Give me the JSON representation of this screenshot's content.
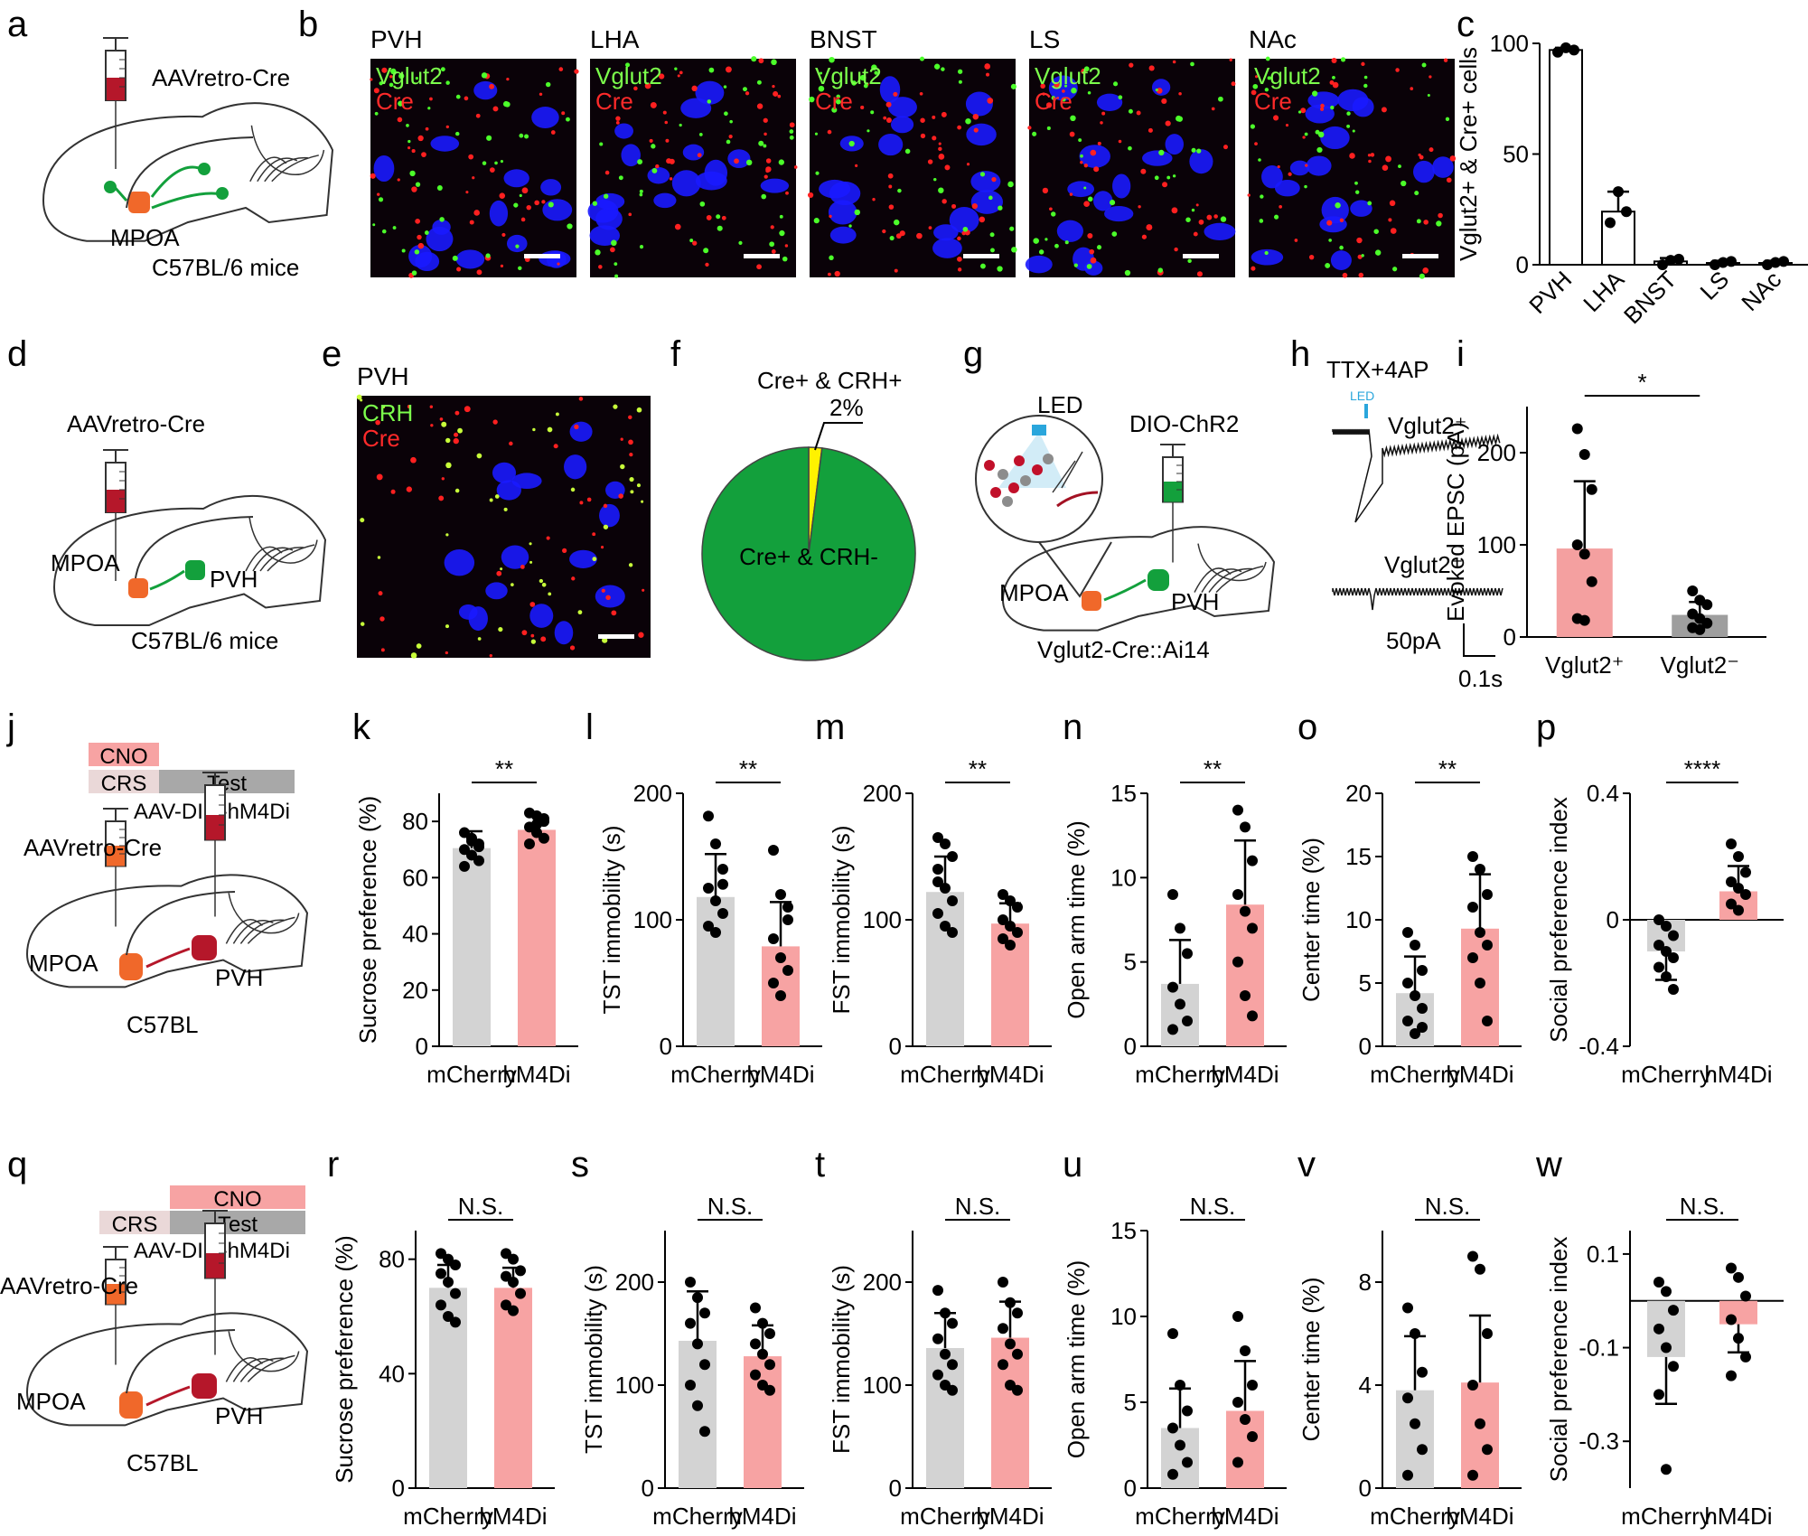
{
  "panel_letters": [
    "a",
    "b",
    "c",
    "d",
    "e",
    "f",
    "g",
    "h",
    "i",
    "j",
    "k",
    "l",
    "m",
    "n",
    "o",
    "p",
    "q",
    "r",
    "s",
    "t",
    "u",
    "v",
    "w"
  ],
  "schematic_a": {
    "virus": "AAVretro-Cre",
    "region": "MPOA",
    "strain": "C57BL/6 mice"
  },
  "schematic_d": {
    "virus": "AAVretro-Cre",
    "region": "MPOA",
    "target": "PVH",
    "strain": "C57BL/6 mice"
  },
  "schematic_g": {
    "led": "LED",
    "virus": "DIO-ChR2",
    "region": "MPOA",
    "target": "PVH",
    "strain": "Vglut2-Cre::Ai14"
  },
  "schematic_j": {
    "cno": "CNO",
    "crs": "CRS",
    "test": "Test",
    "virus_cre": "AAV-DIO-hM4Di",
    "virus_retro": "AAVretro-Cre",
    "region": "MPOA",
    "target": "PVH",
    "strain": "C57BL"
  },
  "schematic_q": {
    "cno": "CNO",
    "crs": "CRS",
    "test": "Test",
    "virus_cre": "AAV-DIO-hM4Di",
    "virus_retro": "AAVretro-Cre",
    "region": "MPOA",
    "target": "PVH",
    "strain": "C57BL"
  },
  "micrographs_b": [
    {
      "region": "PVH",
      "marker1": "Vglut2",
      "marker2": "Cre"
    },
    {
      "region": "LHA",
      "marker1": "Vglut2",
      "marker2": "Cre"
    },
    {
      "region": "BNST",
      "marker1": "Vglut2",
      "marker2": "Cre"
    },
    {
      "region": "LS",
      "marker1": "Vglut2",
      "marker2": "Cre"
    },
    {
      "region": "NAc",
      "marker1": "Vglut2",
      "marker2": "Cre"
    }
  ],
  "micrograph_e": {
    "region": "PVH",
    "marker1": "CRH",
    "marker2": "Cre"
  },
  "trace_h": {
    "title": "TTX+4AP",
    "led": "LED",
    "trace1": "Vglut2⁺",
    "trace2": "Vglut2⁻",
    "scale_y": "50pA",
    "scale_x": "0.1s"
  },
  "colors": {
    "ctrl_bar": "#d3d3d3",
    "hm4di_bar": "#f7a3a3",
    "vglut_pos_bar": "#f4a0a0",
    "vglut_neg_bar": "#9e9e9e",
    "pie_major": "#13a03c",
    "pie_minor": "#fff200",
    "dapi": "#1a1aff",
    "vglut_green": "#4cff2a",
    "cre_red": "#ff2020"
  },
  "chart_data": [
    {
      "panel": "c",
      "type": "bar",
      "categories": [
        "PVH",
        "LHA",
        "BNST",
        "LS",
        "NAc"
      ],
      "values": [
        97,
        24,
        1.5,
        0.8,
        0.8
      ],
      "points": [
        [
          96,
          98,
          97
        ],
        [
          19,
          33,
          24
        ],
        [
          0,
          2,
          2.5
        ],
        [
          0,
          1,
          1.5
        ],
        [
          0,
          1,
          1.5
        ]
      ],
      "err": [
        1,
        9,
        1.5,
        1,
        1
      ],
      "ylabel": "Vglut2+ & Cre+ cells",
      "ylim": [
        0,
        100
      ],
      "yticks": [
        0,
        50,
        100
      ]
    },
    {
      "panel": "f",
      "type": "pie",
      "slices": [
        {
          "label": "Cre+ & CRH+",
          "value": 2
        },
        {
          "label": "Cre+ & CRH-",
          "value": 98
        }
      ],
      "pct_label": "2%"
    },
    {
      "panel": "i",
      "type": "bar",
      "categories": [
        "Vglut2⁺",
        "Vglut2⁻"
      ],
      "values": [
        96,
        24
      ],
      "err": [
        73,
        14
      ],
      "points": [
        [
          226,
          198,
          160,
          100,
          90,
          60,
          20,
          18
        ],
        [
          50,
          40,
          35,
          25,
          20,
          15,
          10,
          8
        ]
      ],
      "ylabel": "Evoked EPSC (pA)",
      "ylim": [
        0,
        250
      ],
      "yticks": [
        0,
        100,
        200
      ],
      "sig": "*"
    },
    {
      "panel": "k",
      "type": "bar",
      "categories": [
        "mCherry",
        "hM4Di"
      ],
      "values": [
        70.5,
        77
      ],
      "err": [
        6,
        5
      ],
      "points": [
        [
          76,
          74,
          72,
          70,
          68,
          66,
          64,
          73,
          71
        ],
        [
          83,
          82,
          80,
          78,
          76,
          74,
          72,
          79,
          81
        ]
      ],
      "ylabel": "Sucrose preference (%)",
      "ylim": [
        0,
        90
      ],
      "yticks": [
        0,
        20,
        40,
        60,
        80
      ],
      "sig": "**"
    },
    {
      "panel": "l",
      "type": "bar",
      "categories": [
        "mCherry",
        "hM4Di"
      ],
      "values": [
        118,
        79
      ],
      "err": [
        34,
        35
      ],
      "points": [
        [
          182,
          160,
          140,
          125,
          115,
          105,
          95,
          90,
          128
        ],
        [
          155,
          120,
          100,
          85,
          70,
          60,
          50,
          40,
          110
        ]
      ],
      "ylabel": "TST immobility (s)",
      "ylim": [
        0,
        200
      ],
      "yticks": [
        0,
        100,
        200
      ],
      "sig": "**"
    },
    {
      "panel": "m",
      "type": "bar",
      "categories": [
        "mCherry",
        "hM4Di"
      ],
      "values": [
        122,
        97
      ],
      "err": [
        28,
        16
      ],
      "points": [
        [
          165,
          160,
          150,
          140,
          125,
          115,
          105,
          95,
          90,
          130
        ],
        [
          120,
          115,
          110,
          100,
          95,
          90,
          85,
          80
        ]
      ],
      "ylabel": "FST immobility (s)",
      "ylim": [
        0,
        200
      ],
      "yticks": [
        0,
        100,
        200
      ],
      "sig": "**"
    },
    {
      "panel": "n",
      "type": "bar",
      "categories": [
        "mCherry",
        "hM4Di"
      ],
      "values": [
        3.7,
        8.4
      ],
      "err": [
        2.6,
        3.8
      ],
      "points": [
        [
          9,
          7,
          5.5,
          3.5,
          2.5,
          1.5,
          1
        ],
        [
          14,
          13,
          11,
          9,
          8,
          7,
          5,
          3,
          1.8
        ]
      ],
      "ylabel": "Open arm time (%)",
      "ylim": [
        0,
        15
      ],
      "yticks": [
        0,
        5,
        10,
        15
      ],
      "sig": "**"
    },
    {
      "panel": "o",
      "type": "bar",
      "categories": [
        "mCherry",
        "hM4Di"
      ],
      "values": [
        4.2,
        9.3
      ],
      "err": [
        2.9,
        4.3
      ],
      "points": [
        [
          9,
          8,
          6,
          5,
          4,
          3,
          2,
          1,
          1.5
        ],
        [
          15,
          14,
          12,
          11,
          9,
          8,
          7,
          5,
          2
        ]
      ],
      "ylabel": "Center time (%)",
      "ylim": [
        0,
        20
      ],
      "yticks": [
        0,
        5,
        10,
        15,
        20
      ],
      "sig": "**"
    },
    {
      "panel": "p",
      "type": "bar",
      "categories": [
        "mCherry",
        "hM4Di"
      ],
      "values": [
        -0.1,
        0.09
      ],
      "err": [
        0.09,
        0.08
      ],
      "points": [
        [
          0,
          -0.02,
          -0.05,
          -0.08,
          -0.1,
          -0.12,
          -0.15,
          -0.18,
          -0.22
        ],
        [
          0.24,
          0.2,
          0.15,
          0.12,
          0.1,
          0.08,
          0.05,
          0.03
        ]
      ],
      "ylabel": "Social preference index",
      "ylim": [
        -0.4,
        0.4
      ],
      "yticks": [
        -0.4,
        0,
        0.4
      ],
      "sig": "****"
    },
    {
      "panel": "r",
      "type": "bar",
      "categories": [
        "mCherry",
        "hM4Di"
      ],
      "values": [
        70,
        70
      ],
      "err": [
        8,
        7
      ],
      "points": [
        [
          82,
          80,
          78,
          75,
          72,
          68,
          64,
          60,
          58
        ],
        [
          82,
          80,
          76,
          74,
          72,
          68,
          64,
          62
        ]
      ],
      "ylabel": "Sucrose preference (%)",
      "ylim": [
        0,
        90
      ],
      "yticks": [
        0,
        40,
        80
      ],
      "sig": "N.S."
    },
    {
      "panel": "s",
      "type": "bar",
      "categories": [
        "mCherry",
        "hM4Di"
      ],
      "values": [
        143,
        128
      ],
      "err": [
        48,
        30
      ],
      "points": [
        [
          200,
          185,
          170,
          160,
          140,
          120,
          100,
          80,
          55
        ],
        [
          175,
          160,
          150,
          140,
          130,
          120,
          110,
          100,
          95
        ]
      ],
      "ylabel": "TST immobility (s)",
      "ylim": [
        0,
        250
      ],
      "yticks": [
        0,
        100,
        200
      ],
      "sig": "N.S."
    },
    {
      "panel": "t",
      "type": "bar",
      "categories": [
        "mCherry",
        "hM4Di"
      ],
      "values": [
        136,
        146
      ],
      "err": [
        34,
        35
      ],
      "points": [
        [
          192,
          170,
          160,
          145,
          130,
          120,
          110,
          100,
          95
        ],
        [
          200,
          180,
          170,
          155,
          140,
          130,
          120,
          100,
          95
        ]
      ],
      "ylabel": "FST immobility (s)",
      "ylim": [
        0,
        250
      ],
      "yticks": [
        0,
        100,
        200
      ],
      "sig": "N.S."
    },
    {
      "panel": "u",
      "type": "bar",
      "categories": [
        "mCherry",
        "hM4Di"
      ],
      "values": [
        3.5,
        4.5
      ],
      "err": [
        2.3,
        2.9
      ],
      "points": [
        [
          9,
          6,
          4.5,
          3.5,
          2.5,
          1.5,
          0.8
        ],
        [
          10,
          8,
          6,
          5,
          4,
          3,
          1.5
        ]
      ],
      "ylabel": "Open arm time (%)",
      "ylim": [
        0,
        15
      ],
      "yticks": [
        0,
        5,
        10,
        15
      ],
      "sig": "N.S."
    },
    {
      "panel": "v",
      "type": "bar",
      "categories": [
        "mCherry",
        "hM4Di"
      ],
      "values": [
        3.8,
        4.1
      ],
      "err": [
        2.1,
        2.6
      ],
      "points": [
        [
          7,
          6,
          4.5,
          3.5,
          2.5,
          1.5,
          0.5
        ],
        [
          9,
          8.5,
          6,
          4,
          2.5,
          1.5,
          0.5
        ]
      ],
      "ylabel": "Center time (%)",
      "ylim": [
        0,
        10
      ],
      "yticks": [
        0,
        4,
        8
      ],
      "sig": "N.S."
    },
    {
      "panel": "w",
      "type": "bar",
      "categories": [
        "mCherry",
        "hM4Di"
      ],
      "values": [
        -0.12,
        -0.05
      ],
      "err": [
        0.1,
        0.06
      ],
      "points": [
        [
          0.04,
          0.02,
          -0.02,
          -0.06,
          -0.1,
          -0.14,
          -0.2,
          -0.36
        ],
        [
          0.07,
          0.05,
          0.01,
          -0.04,
          -0.08,
          -0.12,
          -0.16
        ]
      ],
      "ylabel": "Social preference index",
      "ylim": [
        -0.4,
        0.15
      ],
      "yticks": [
        -0.3,
        -0.1,
        0.1
      ],
      "sig": "N.S."
    }
  ]
}
